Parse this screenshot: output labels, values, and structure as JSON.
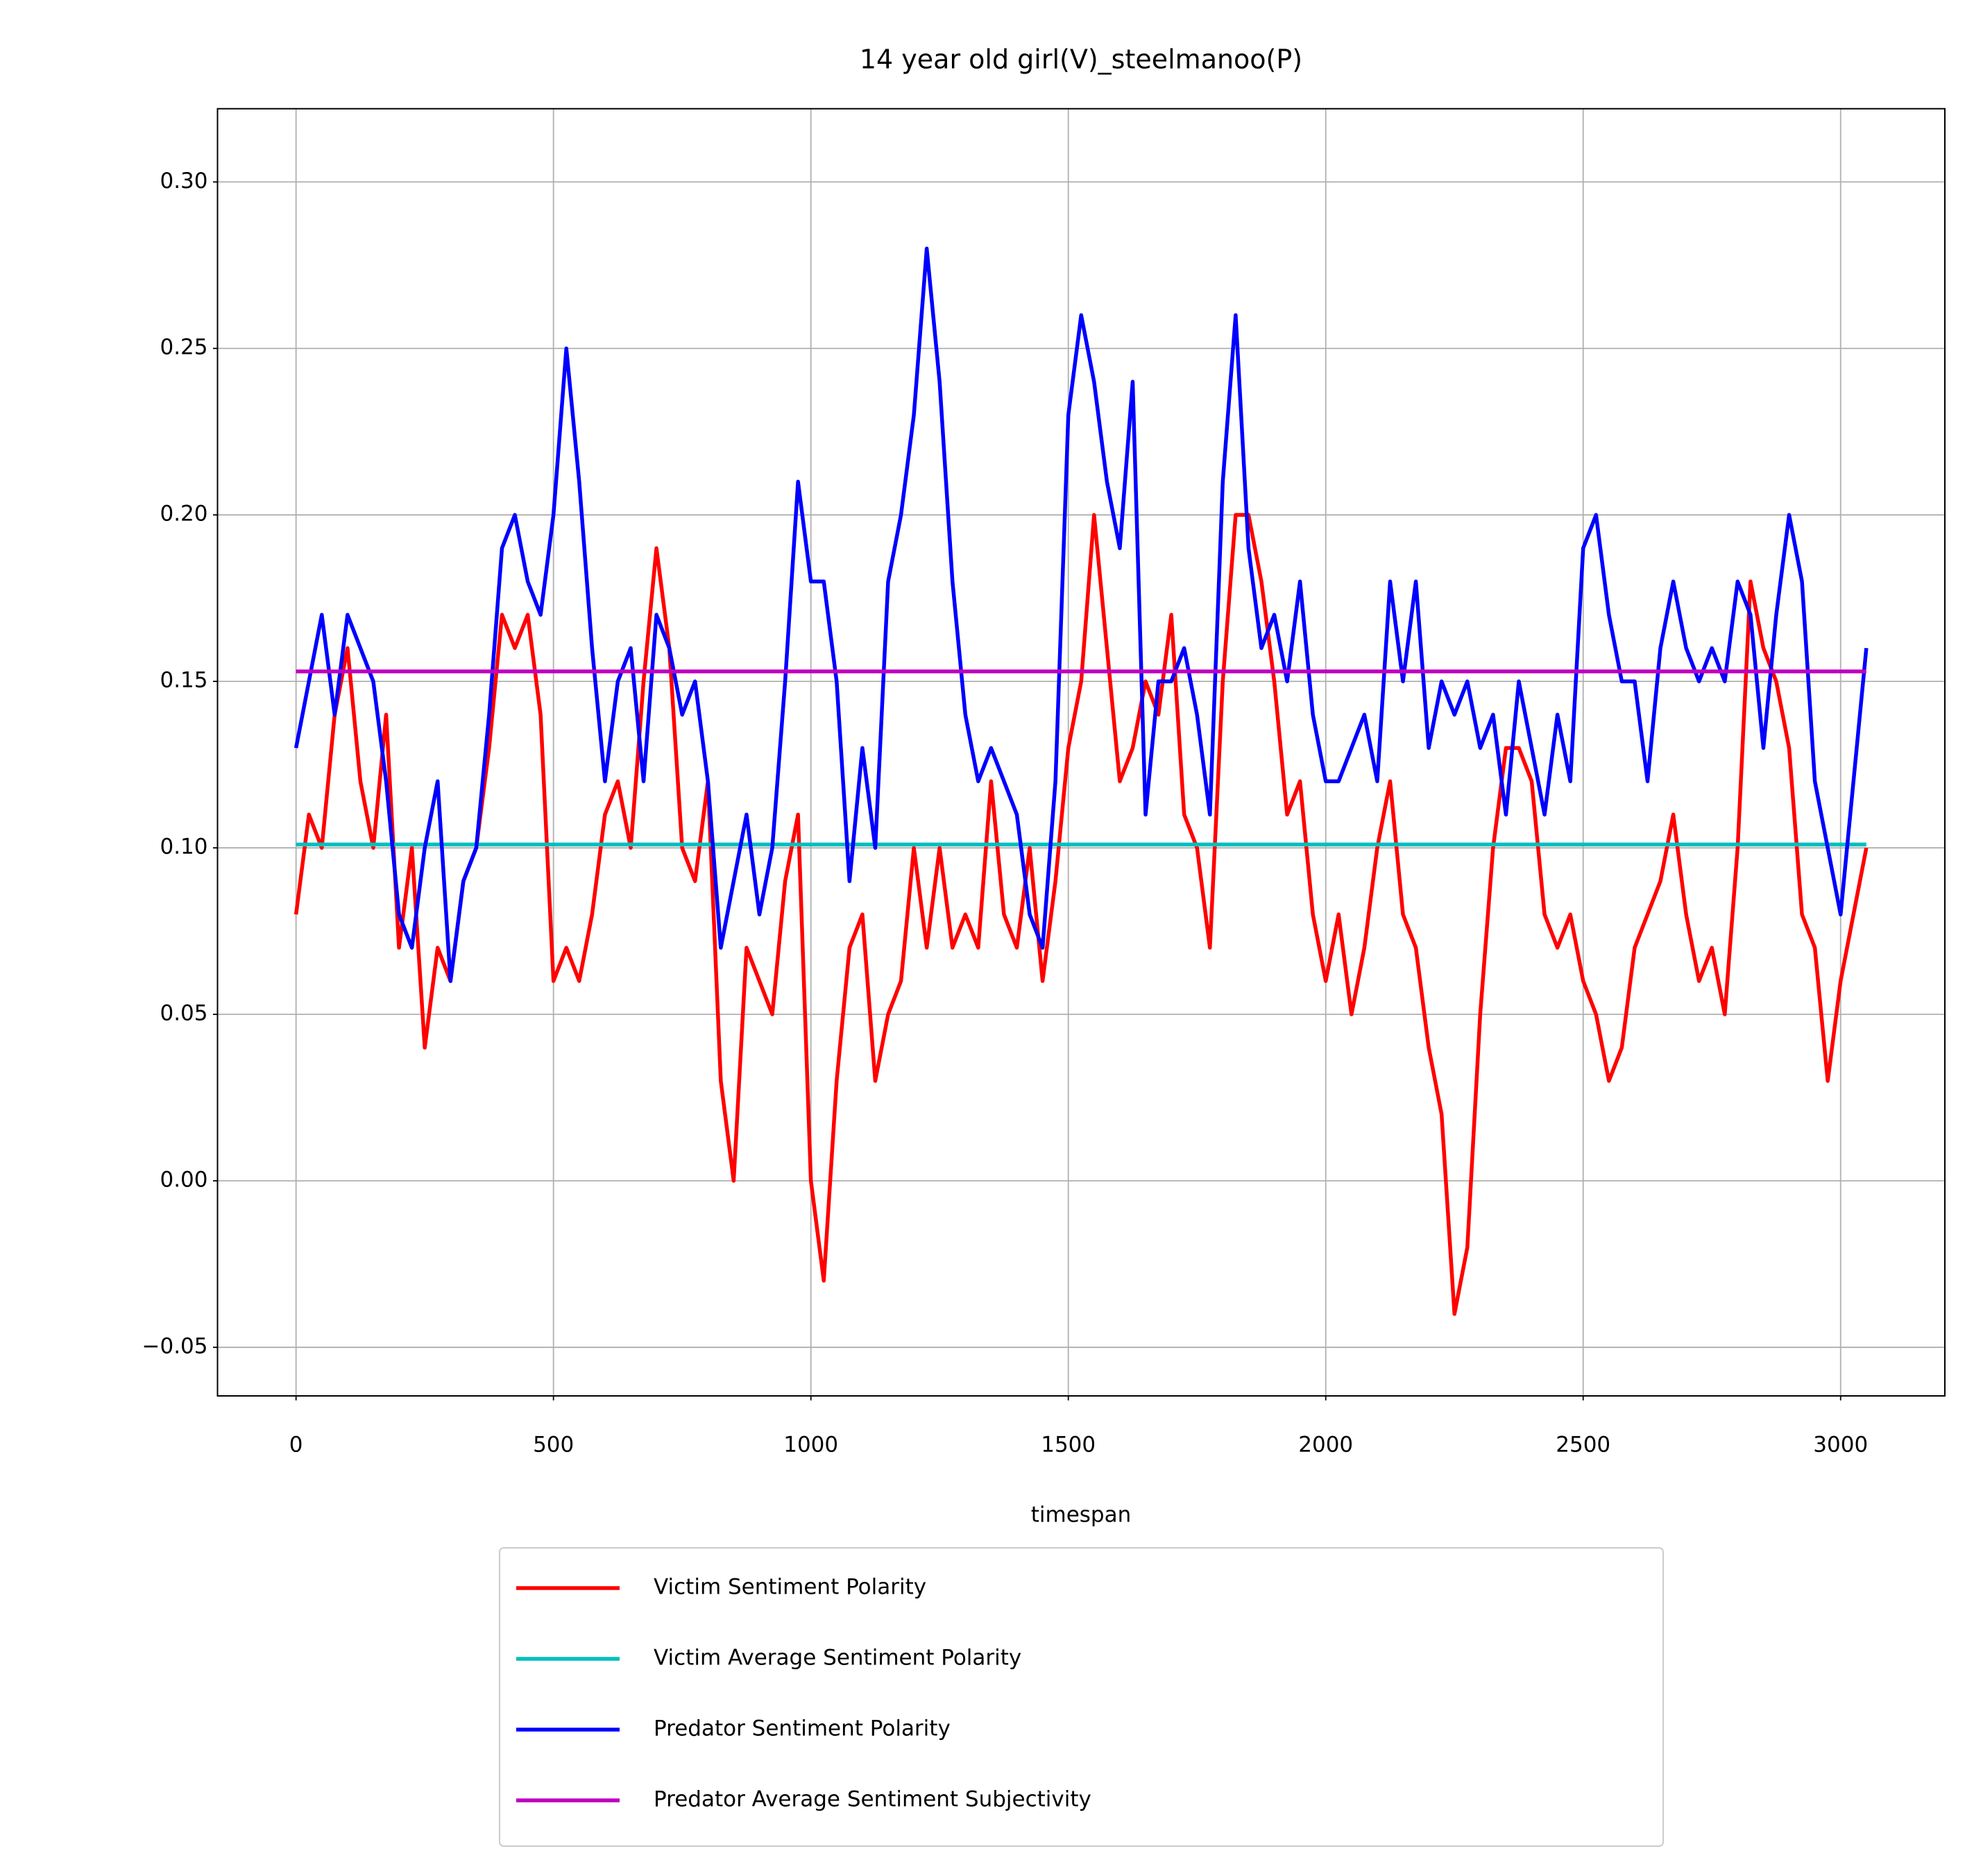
{
  "chart_data": {
    "type": "line",
    "title": "14 year old girl(V)_steelmanoo(P)",
    "x_label": "timespan",
    "x": [
      0,
      25,
      50,
      75,
      100,
      125,
      150,
      175,
      200,
      225,
      250,
      275,
      300,
      325,
      350,
      375,
      400,
      425,
      450,
      475,
      500,
      525,
      550,
      575,
      600,
      625,
      650,
      675,
      700,
      725,
      750,
      775,
      800,
      825,
      850,
      875,
      900,
      925,
      950,
      975,
      1000,
      1025,
      1050,
      1075,
      1100,
      1125,
      1150,
      1175,
      1200,
      1225,
      1250,
      1275,
      1300,
      1325,
      1350,
      1375,
      1400,
      1425,
      1450,
      1475,
      1500,
      1525,
      1550,
      1575,
      1600,
      1625,
      1650,
      1675,
      1700,
      1725,
      1750,
      1775,
      1800,
      1825,
      1850,
      1875,
      1900,
      1925,
      1950,
      1975,
      2000,
      2025,
      2050,
      2075,
      2100,
      2125,
      2150,
      2175,
      2200,
      2225,
      2250,
      2275,
      2300,
      2325,
      2350,
      2375,
      2400,
      2425,
      2450,
      2475,
      2500,
      2525,
      2550,
      2575,
      2600,
      2625,
      2650,
      2675,
      2700,
      2725,
      2750,
      2775,
      2800,
      2825,
      2850,
      2875,
      2900,
      2925,
      2950,
      2975,
      3000,
      3025,
      3050
    ],
    "series": [
      {
        "name": "Victim Sentiment Polarity",
        "color": "#ff0000",
        "values": [
          0.08,
          0.11,
          0.1,
          0.14,
          0.16,
          0.12,
          0.1,
          0.14,
          0.07,
          0.1,
          0.04,
          0.07,
          0.06,
          0.09,
          0.1,
          0.13,
          0.17,
          0.16,
          0.17,
          0.14,
          0.06,
          0.07,
          0.06,
          0.08,
          0.11,
          0.12,
          0.1,
          0.15,
          0.19,
          0.16,
          0.1,
          0.09,
          0.12,
          0.03,
          0.0,
          0.07,
          0.06,
          0.05,
          0.09,
          0.11,
          0.0,
          -0.03,
          0.03,
          0.07,
          0.08,
          0.03,
          0.05,
          0.06,
          0.1,
          0.07,
          0.1,
          0.07,
          0.08,
          0.07,
          0.12,
          0.08,
          0.07,
          0.1,
          0.06,
          0.09,
          0.13,
          0.15,
          0.2,
          0.16,
          0.12,
          0.13,
          0.15,
          0.14,
          0.17,
          0.11,
          0.1,
          0.07,
          0.15,
          0.2,
          0.2,
          0.18,
          0.15,
          0.11,
          0.12,
          0.08,
          0.06,
          0.08,
          0.05,
          0.07,
          0.1,
          0.12,
          0.08,
          0.07,
          0.04,
          0.02,
          -0.04,
          -0.02,
          0.05,
          0.1,
          0.13,
          0.13,
          0.12,
          0.08,
          0.07,
          0.08,
          0.06,
          0.05,
          0.03,
          0.04,
          0.07,
          0.08,
          0.09,
          0.11,
          0.08,
          0.06,
          0.07,
          0.05,
          0.1,
          0.18,
          0.16,
          0.15,
          0.13,
          0.08,
          0.07,
          0.03,
          0.06,
          0.08,
          0.1
        ]
      },
      {
        "name": "Victim Average Sentiment Polarity",
        "color": "#00bfbf",
        "x": [
          0,
          3050
        ],
        "values": [
          0.101,
          0.101
        ]
      },
      {
        "name": "Predator Sentiment Polarity",
        "color": "#0000ff",
        "values": [
          0.13,
          0.15,
          0.17,
          0.14,
          0.17,
          0.16,
          0.15,
          0.12,
          0.08,
          0.07,
          0.1,
          0.12,
          0.06,
          0.09,
          0.1,
          0.14,
          0.19,
          0.2,
          0.18,
          0.17,
          0.2,
          0.25,
          0.21,
          0.16,
          0.12,
          0.15,
          0.16,
          0.12,
          0.17,
          0.16,
          0.14,
          0.15,
          0.12,
          0.07,
          0.09,
          0.11,
          0.08,
          0.1,
          0.15,
          0.21,
          0.18,
          0.18,
          0.15,
          0.09,
          0.13,
          0.1,
          0.18,
          0.2,
          0.23,
          0.28,
          0.24,
          0.18,
          0.14,
          0.12,
          0.13,
          0.12,
          0.11,
          0.08,
          0.07,
          0.12,
          0.23,
          0.26,
          0.24,
          0.21,
          0.19,
          0.24,
          0.11,
          0.15,
          0.15,
          0.16,
          0.14,
          0.11,
          0.21,
          0.26,
          0.19,
          0.16,
          0.17,
          0.15,
          0.18,
          0.14,
          0.12,
          0.12,
          0.13,
          0.14,
          0.12,
          0.18,
          0.15,
          0.18,
          0.13,
          0.15,
          0.14,
          0.15,
          0.13,
          0.14,
          0.11,
          0.15,
          0.13,
          0.11,
          0.14,
          0.12,
          0.19,
          0.2,
          0.17,
          0.15,
          0.15,
          0.12,
          0.16,
          0.18,
          0.16,
          0.15,
          0.16,
          0.15,
          0.18,
          0.17,
          0.13,
          0.17,
          0.2,
          0.18,
          0.12,
          0.1,
          0.08,
          0.12,
          0.16
        ]
      },
      {
        "name": "Predator Average Sentiment Subjectivity",
        "color": "#bf00bf",
        "x": [
          0,
          3050
        ],
        "values": [
          0.153,
          0.153
        ]
      }
    ],
    "xlim": [
      -152.5,
      3202.5
    ],
    "xticks": [
      0,
      500,
      1000,
      1500,
      2000,
      2500,
      3000
    ],
    "ylim": [
      -0.0646,
      0.322
    ],
    "yticks": [
      {
        "value": -0.05,
        "label": "−0.05"
      },
      {
        "value": 0,
        "label": "0.00"
      },
      {
        "value": 0.05,
        "label": "0.05"
      },
      {
        "value": 0.1,
        "label": "0.10"
      },
      {
        "value": 0.15,
        "label": "0.15"
      },
      {
        "value": 0.2,
        "label": "0.20"
      },
      {
        "value": 0.25,
        "label": "0.25"
      },
      {
        "value": 0.3,
        "label": "0.30"
      }
    ],
    "grid": true,
    "legend": "below"
  }
}
